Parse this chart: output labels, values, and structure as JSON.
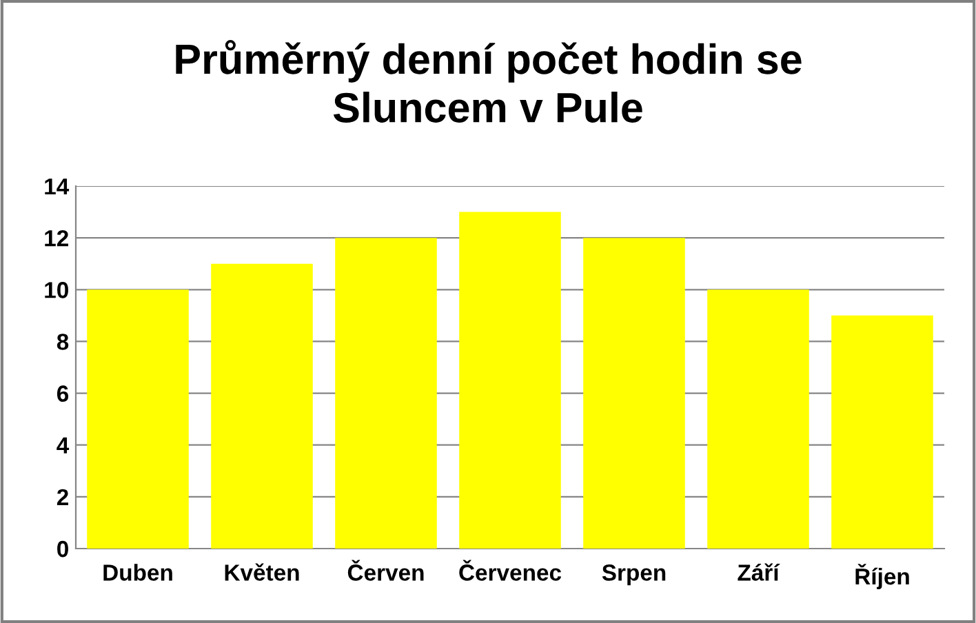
{
  "chart_data": {
    "type": "bar",
    "title": "Průměrný denní počet hodin se\nSluncem v Pule",
    "categories": [
      "Duben",
      "Květen",
      "Červen",
      "Červenec",
      "Srpen",
      "Září",
      "Říjen"
    ],
    "values": [
      10,
      11,
      12,
      13,
      12,
      10,
      9
    ],
    "color": "#ffff00",
    "ylim": [
      0,
      14
    ],
    "yticks": [
      0,
      2,
      4,
      6,
      8,
      10,
      12,
      14
    ],
    "grid": "y",
    "legend": false
  }
}
